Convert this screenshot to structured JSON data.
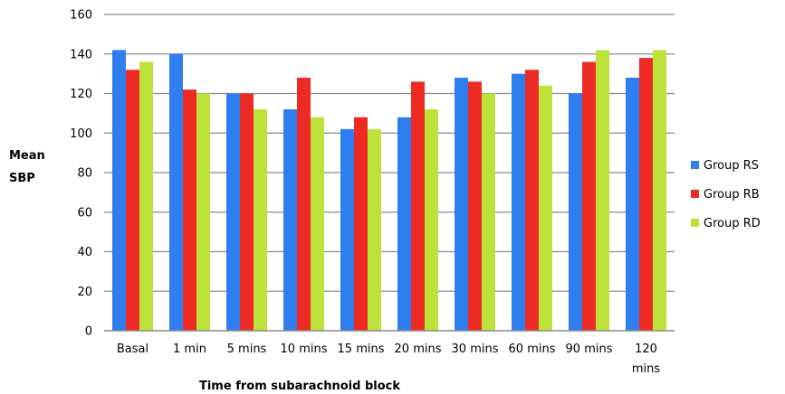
{
  "chart_data": {
    "type": "bar",
    "categories": [
      "Basal",
      "1 min",
      "5 mins",
      "10 mins",
      "15 mins",
      "20 mins",
      "30 mins",
      "60 mins",
      "90 mins",
      "120 mins"
    ],
    "series": [
      {
        "name": "Group RS",
        "color": "#2f7ef0",
        "values": [
          142,
          140,
          120,
          112,
          102,
          108,
          128,
          130,
          120,
          128
        ]
      },
      {
        "name": "Group RB",
        "color": "#ee2a24",
        "values": [
          132,
          122,
          120,
          128,
          108,
          126,
          126,
          132,
          136,
          138
        ]
      },
      {
        "name": "Group RD",
        "color": "#bde23a",
        "values": [
          136,
          120,
          112,
          108,
          102,
          112,
          120,
          124,
          142,
          142
        ]
      }
    ],
    "ylabel_lines": [
      "Mean",
      "SBP"
    ],
    "xlabel": "Time from subarachnoid block",
    "ylim": [
      0,
      160
    ],
    "yticks": [
      0,
      20,
      40,
      60,
      80,
      100,
      120,
      140,
      160
    ],
    "grid": true,
    "legend_position": "right"
  }
}
